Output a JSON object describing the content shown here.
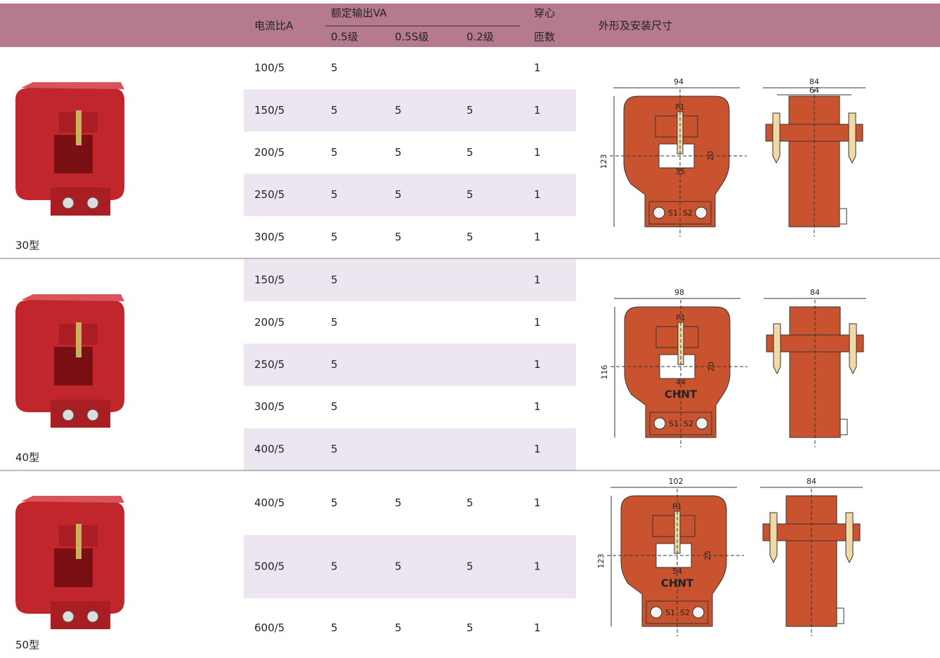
{
  "header": {
    "ratio": "电流比A",
    "rated_output": "额定输出VA",
    "class_05": "0.5级",
    "class_05s": "0.5S级",
    "class_02": "0.2级",
    "turns_1": "穿心",
    "turns_2": "匝数",
    "dimensions": "外形及安装尺寸"
  },
  "groups": [
    {
      "model": "30型",
      "rows": [
        [
          "100/5",
          5,
          null,
          null,
          1
        ],
        [
          "150/5",
          5,
          5,
          5,
          1
        ],
        [
          "200/5",
          5,
          5,
          5,
          1
        ],
        [
          "250/5",
          5,
          5,
          5,
          1
        ],
        [
          "300/5",
          5,
          5,
          5,
          1
        ]
      ],
      "diagram": {
        "width": "94",
        "height": "123",
        "window_width": "35",
        "window_height": "20",
        "p1": "P1",
        "s1": "S1",
        "s2": "S2",
        "side_outer": "84",
        "side_inner": "64"
      }
    },
    {
      "model": "40型",
      "rows": [
        [
          "150/5",
          5,
          null,
          null,
          1
        ],
        [
          "200/5",
          5,
          null,
          null,
          1
        ],
        [
          "250/5",
          5,
          null,
          null,
          1
        ],
        [
          "300/5",
          5,
          null,
          null,
          1
        ],
        [
          "400/5",
          5,
          null,
          null,
          1
        ]
      ],
      "diagram": {
        "width": "98",
        "height": "116",
        "window_width": "44",
        "window_height": "20",
        "p1": "P1",
        "s1": "S1",
        "s2": "S2",
        "brand": "CHNT",
        "side_outer": "84"
      }
    },
    {
      "model": "50型",
      "rows": [
        [
          "400/5",
          5,
          5,
          5,
          1
        ],
        [
          "500/5",
          5,
          5,
          5,
          1
        ],
        [
          "600/5",
          5,
          5,
          5,
          1
        ]
      ],
      "diagram": {
        "width": "102",
        "height": "123",
        "window_width": "54",
        "window_height": "25",
        "p1": "P1",
        "s1": "S1",
        "s2": "S2",
        "brand": "CHNT",
        "side_outer": "84"
      }
    }
  ]
}
